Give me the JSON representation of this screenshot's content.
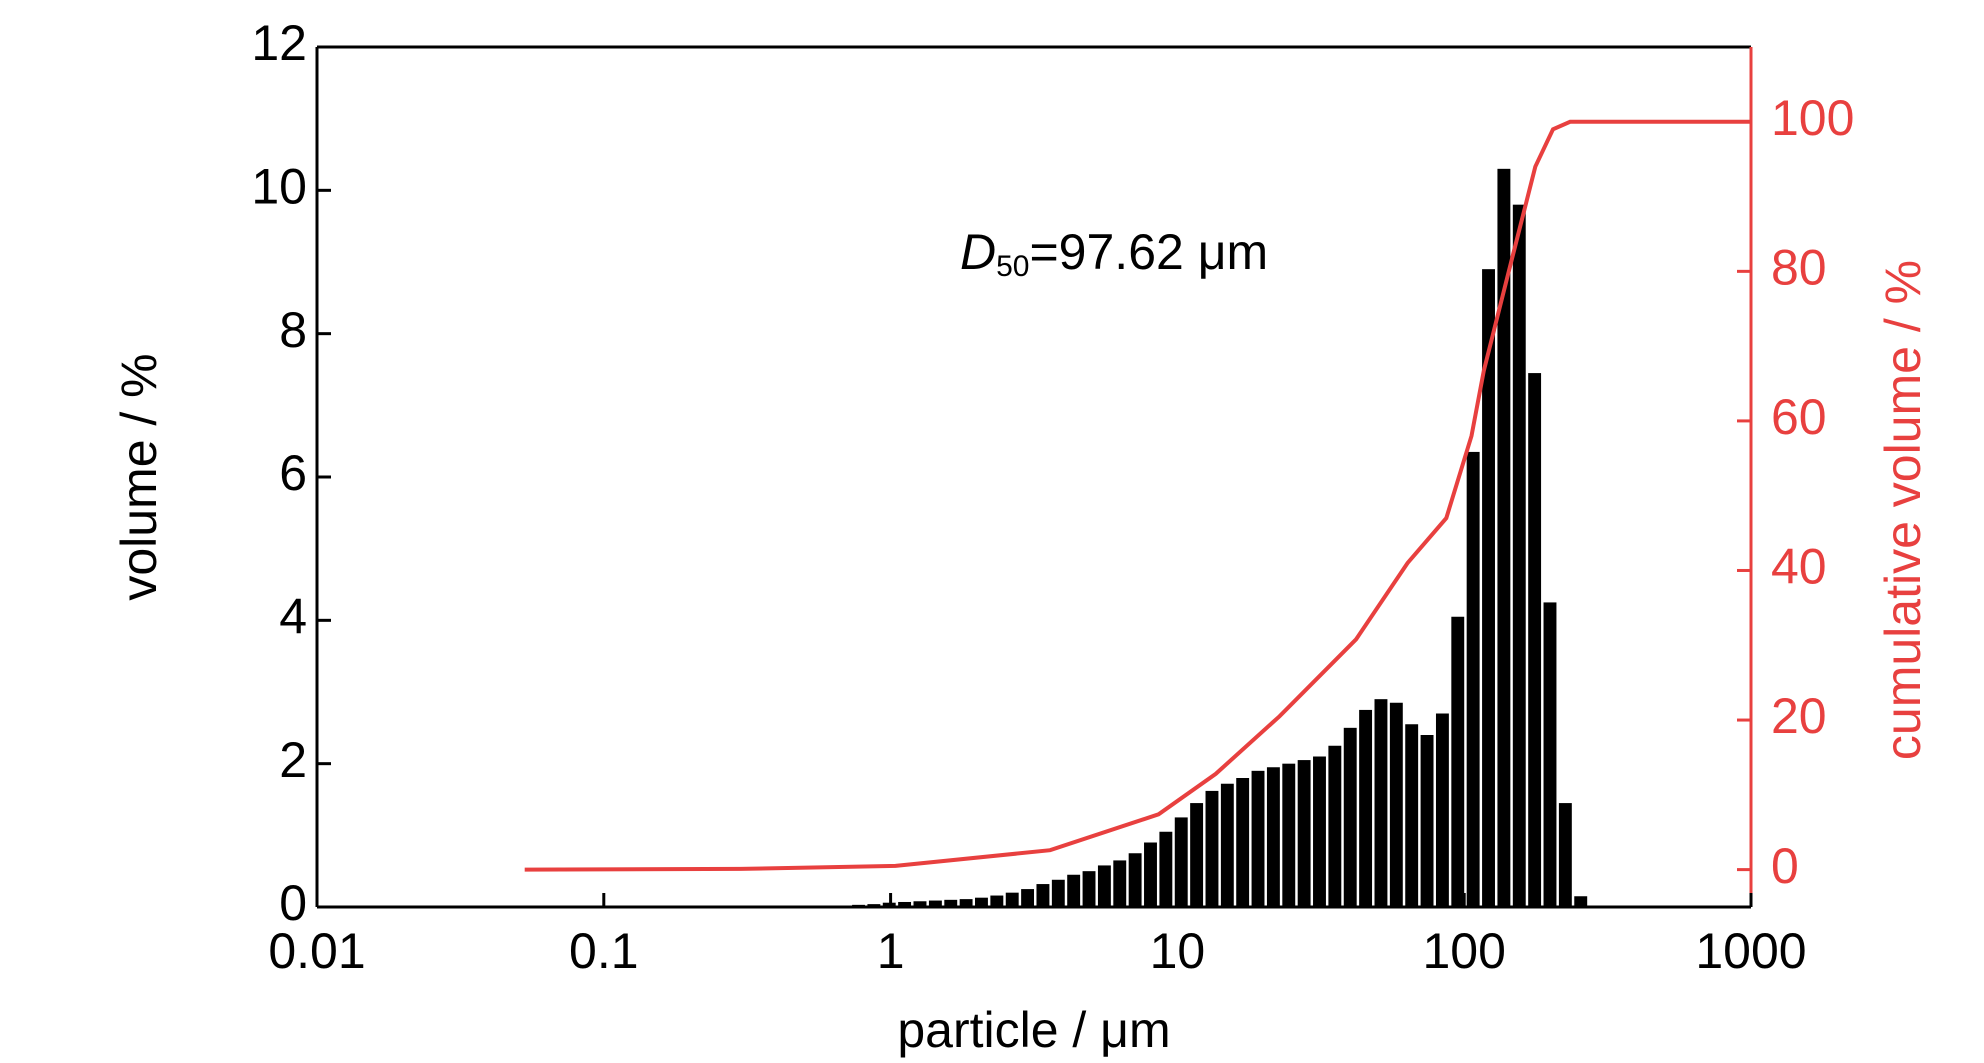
{
  "chart_data": {
    "type": "histogram",
    "xlabel": "particle / μm",
    "ylabel": "volume / %",
    "y2label": "cumulative volume / %",
    "annotation": {
      "symbol": "D",
      "subscript": "50",
      "text": "=97.62 μm"
    },
    "xlog": true,
    "xlim": [
      0.01,
      1000
    ],
    "xticks": [
      0.01,
      0.1,
      1,
      10,
      100,
      1000
    ],
    "ylim": [
      0,
      12
    ],
    "yticks": [
      0,
      2,
      4,
      6,
      8,
      10,
      12
    ],
    "y2lim": [
      -5,
      110
    ],
    "y2ticks": [
      0,
      20,
      40,
      60,
      80,
      100
    ],
    "y2color": "#e8403f",
    "series": [
      {
        "type": "histogram",
        "color": "#000000",
        "bins": [
          0.727,
          0.822,
          0.93,
          1.052,
          1.19,
          1.347,
          1.524,
          1.724,
          1.95,
          2.206,
          2.496,
          2.824,
          3.194,
          3.614,
          4.088,
          4.625,
          5.232,
          5.919,
          6.696,
          7.575,
          8.57,
          9.695,
          10.97,
          12.41,
          14.04,
          15.88,
          17.96,
          20.32,
          22.99,
          26.01,
          29.42,
          33.28,
          37.65,
          42.6,
          48.19,
          54.52,
          61.68,
          69.77,
          78.94,
          89.3,
          101.0,
          114.3,
          129.3,
          146.3,
          165.5,
          187.2,
          211.8,
          239.6,
          271.1
        ],
        "values": [
          0.03,
          0.04,
          0.06,
          0.07,
          0.08,
          0.09,
          0.1,
          0.11,
          0.13,
          0.16,
          0.2,
          0.25,
          0.32,
          0.38,
          0.45,
          0.5,
          0.58,
          0.65,
          0.75,
          0.9,
          1.05,
          1.25,
          1.45,
          1.62,
          1.72,
          1.8,
          1.9,
          1.95,
          2.0,
          2.05,
          2.1,
          2.25,
          2.5,
          2.75,
          2.9,
          2.85,
          2.55,
          2.4,
          2.7,
          4.05,
          6.35,
          8.9,
          10.3,
          9.8,
          7.45,
          4.25,
          1.45,
          0.15
        ]
      },
      {
        "type": "line",
        "color": "#e8403f",
        "axis": "y2",
        "x": [
          0.053,
          0.3,
          1.04,
          3.6,
          8.6,
          13.6,
          22.7,
          42,
          63.5,
          86.6,
          106,
          117,
          143,
          177,
          204,
          234,
          1000
        ],
        "values": [
          0,
          0.1,
          0.5,
          2.6,
          7.4,
          12.8,
          20.5,
          30.8,
          41,
          47,
          58,
          66.7,
          80,
          94,
          99,
          100,
          100
        ]
      }
    ]
  }
}
